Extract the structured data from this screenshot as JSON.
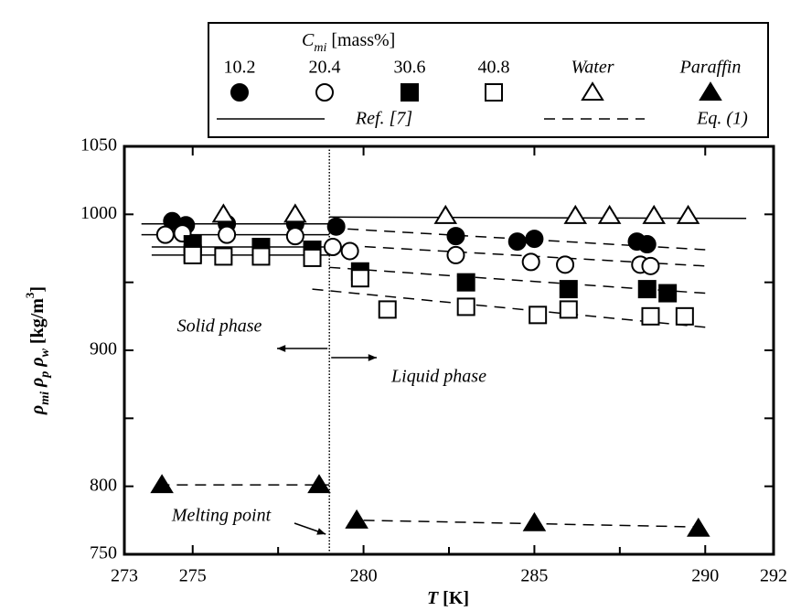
{
  "chart_data": {
    "type": "scatter",
    "x_label": [
      "T",
      " [K]"
    ],
    "y_label": [
      "ρ",
      "mi",
      " ρ",
      "p",
      " ρ",
      "w",
      " [kg/m",
      "3",
      "]"
    ],
    "legend_title": [
      "C",
      "mi",
      " [mass%]"
    ],
    "xlim": [
      273,
      292
    ],
    "ylim": [
      750,
      1050
    ],
    "xticks": [
      273,
      275,
      280,
      285,
      290,
      292
    ],
    "yticks": [
      750,
      800,
      900,
      1000,
      1050
    ],
    "xticks_minor": [
      277.5,
      282.5,
      287.5
    ],
    "yticks_minor": [
      850,
      950
    ],
    "melting_point_x": 279,
    "annotations": [
      "Solid phase",
      "Liquid phase",
      "Melting point"
    ],
    "series": [
      {
        "name": "10.2",
        "marker": "circle",
        "filled": true,
        "color": "#000000",
        "x": [
          274.4,
          274.8,
          276.0,
          278.0,
          279.2,
          282.7,
          284.5,
          285.0,
          288.0,
          288.3
        ],
        "values": [
          995,
          992,
          993,
          993,
          991,
          984,
          980,
          982,
          980,
          978
        ]
      },
      {
        "name": "20.4",
        "marker": "circle",
        "filled": false,
        "color": "#000000",
        "x": [
          274.2,
          274.7,
          276.0,
          278.0,
          279.1,
          279.6,
          282.7,
          284.9,
          285.9,
          288.1,
          288.4
        ],
        "values": [
          985,
          986,
          985,
          984,
          976,
          973,
          970,
          965,
          963,
          963,
          962
        ]
      },
      {
        "name": "30.6",
        "marker": "square",
        "filled": true,
        "color": "#000000",
        "x": [
          275.0,
          275.0,
          277.0,
          278.5,
          279.9,
          283.0,
          286.0,
          288.3,
          288.9
        ],
        "values": [
          978,
          971,
          976,
          974,
          958,
          950,
          945,
          945,
          942
        ]
      },
      {
        "name": "40.8",
        "marker": "square",
        "filled": false,
        "color": "#000000",
        "x": [
          275.0,
          275.9,
          277.0,
          278.5,
          279.9,
          280.7,
          283.0,
          285.1,
          286.0,
          288.4,
          289.4
        ],
        "values": [
          970,
          969,
          969,
          968,
          953,
          930,
          932,
          926,
          930,
          925,
          925
        ]
      },
      {
        "name": "Water",
        "marker": "triangle",
        "filled": false,
        "color": "#000000",
        "x": [
          275.9,
          278.0,
          282.4,
          286.2,
          287.2,
          288.5,
          289.5
        ],
        "values": [
          1000,
          1000,
          999,
          999,
          999,
          999,
          999
        ]
      },
      {
        "name": "Paraffin",
        "marker": "triangle",
        "filled": true,
        "color": "#000000",
        "x": [
          274.1,
          278.7,
          279.8,
          285.0,
          289.8
        ],
        "values": [
          801,
          801,
          775,
          773,
          769
        ]
      }
    ],
    "fits": [
      {
        "name": "Ref. [7]",
        "dash": "solid",
        "segments": [
          {
            "x": [
              279,
              291.2
            ],
            "y": [
              998,
              997
            ]
          },
          {
            "x": [
              273.5,
              279
            ],
            "y": [
              993,
              993
            ]
          },
          {
            "x": [
              273.5,
              279
            ],
            "y": [
              985,
              985
            ]
          },
          {
            "x": [
              273.8,
              279
            ],
            "y": [
              976,
              976
            ]
          },
          {
            "x": [
              273.8,
              279
            ],
            "y": [
              970,
              970
            ]
          }
        ]
      },
      {
        "name": "Eq. (1)",
        "dash": "dashed",
        "segments": [
          {
            "x": [
              279,
              290
            ],
            "y": [
              990,
              974
            ]
          },
          {
            "x": [
              279.5,
              290
            ],
            "y": [
              977,
              962
            ]
          },
          {
            "x": [
              279,
              290
            ],
            "y": [
              961,
              942
            ]
          },
          {
            "x": [
              278.5,
              290
            ],
            "y": [
              945,
              917
            ]
          },
          {
            "x": [
              274,
              279
            ],
            "y": [
              801,
              801
            ]
          },
          {
            "x": [
              280,
              290
            ],
            "y": [
              775,
              770
            ]
          }
        ]
      }
    ]
  }
}
